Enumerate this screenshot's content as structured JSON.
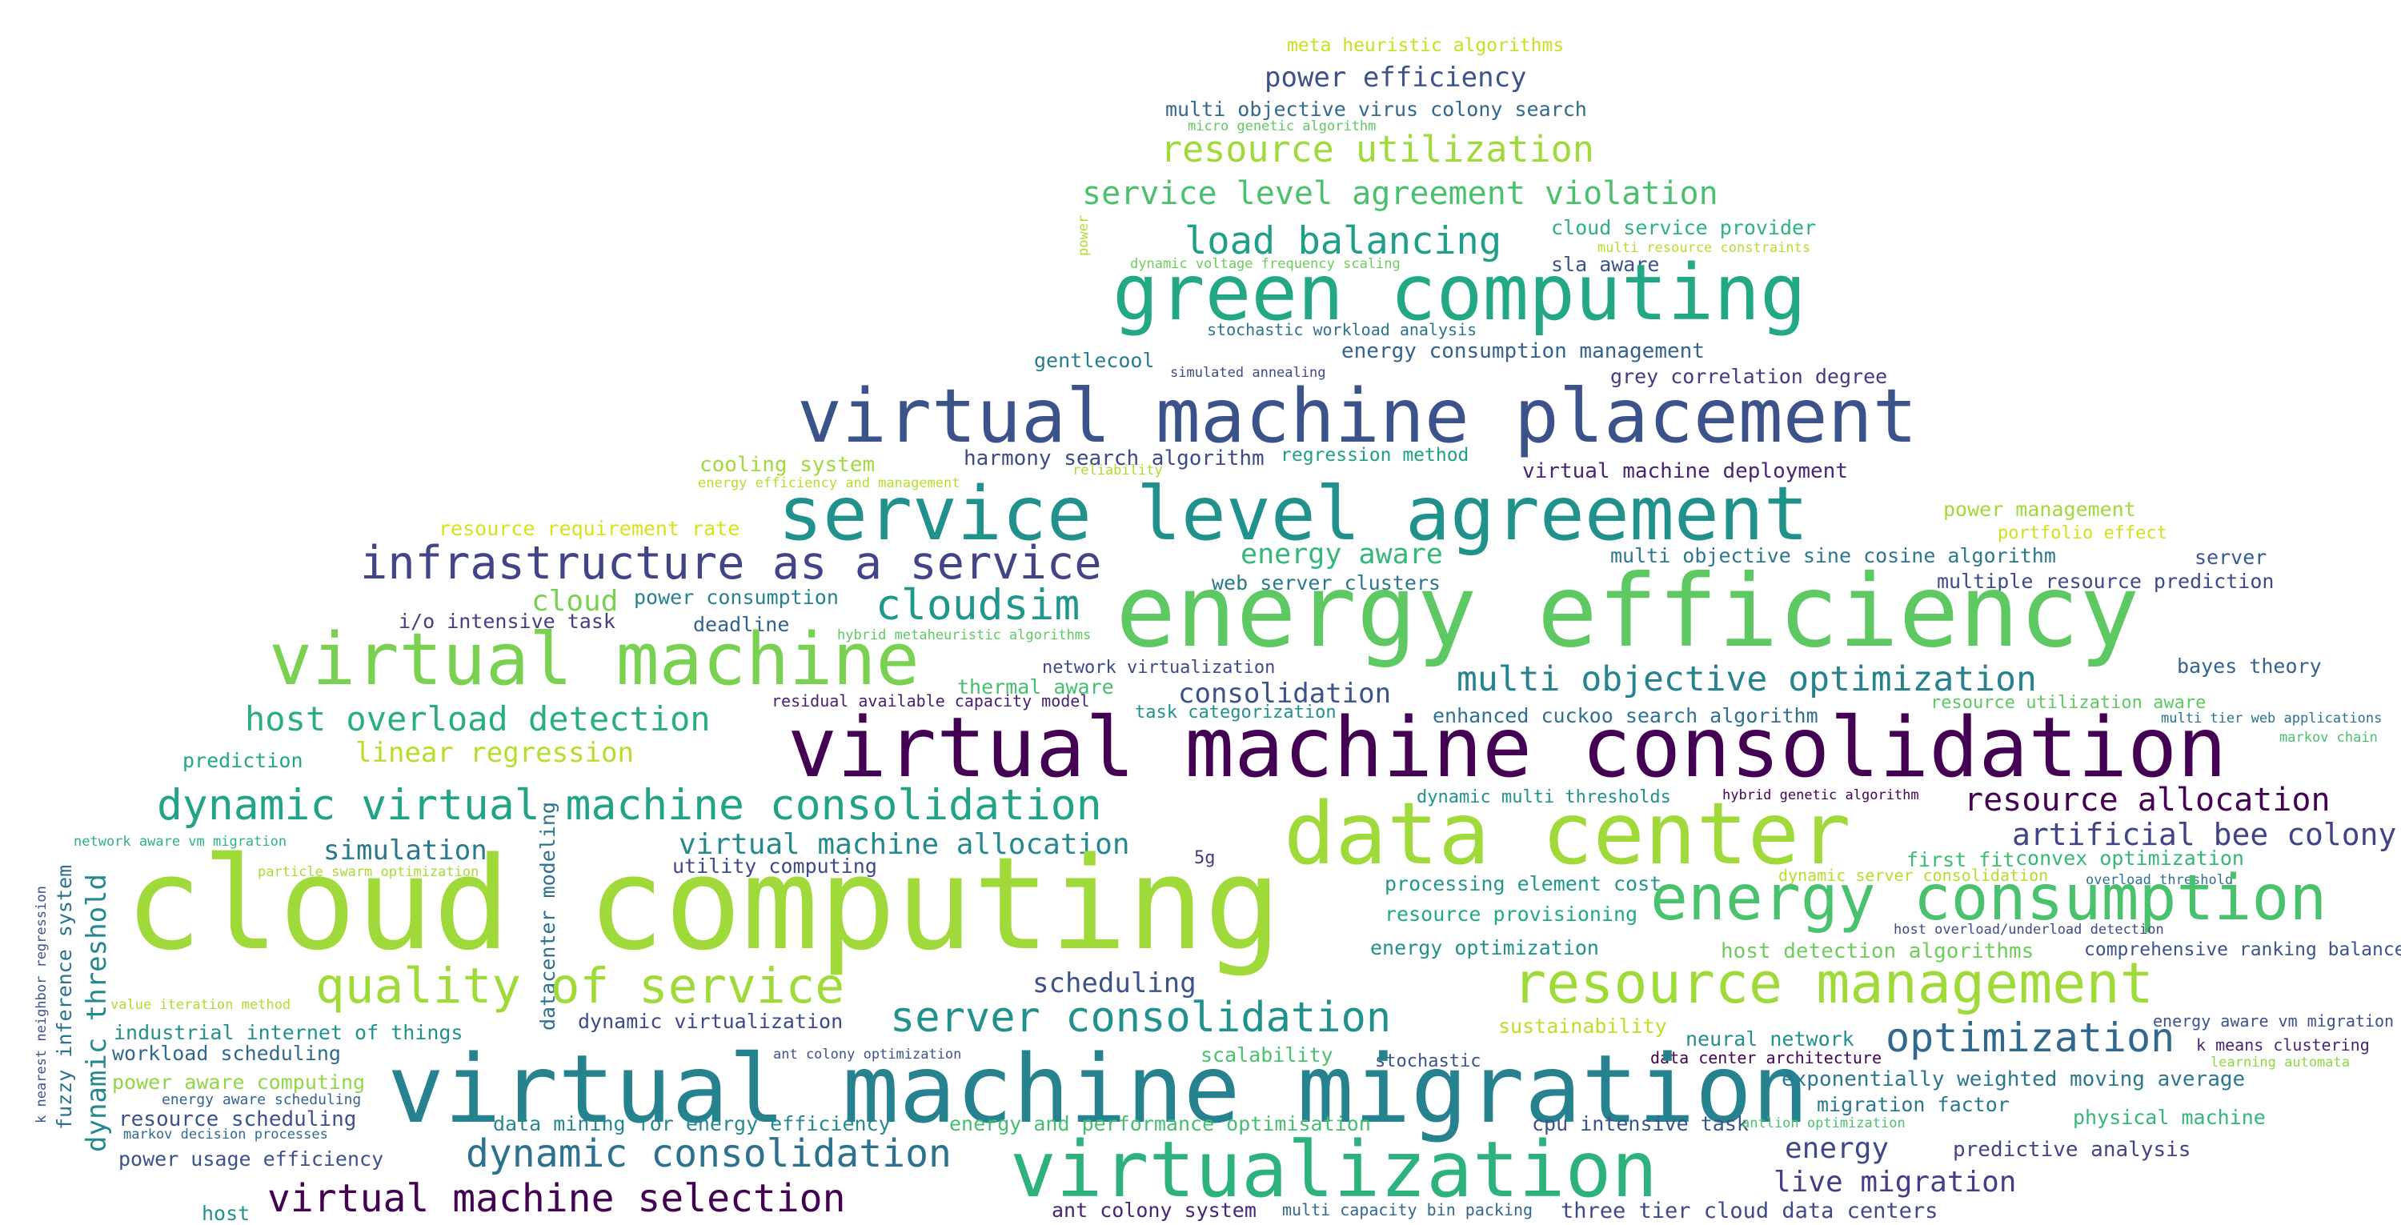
{
  "words": [
    {
      "text": "meta heuristic algorithms",
      "color": "#c8e020"
    },
    {
      "text": "power efficiency",
      "color": "#3b528b"
    },
    {
      "text": "multi objective virus colony search",
      "color": "#31688e"
    },
    {
      "text": "micro genetic algorithm",
      "color": "#5ec962"
    },
    {
      "text": "resource utilization",
      "color": "#9fda3a"
    },
    {
      "text": "service level agreement violation",
      "color": "#4ac16d"
    },
    {
      "text": "power",
      "color": "#addc30"
    },
    {
      "text": "load balancing",
      "color": "#1f9e89"
    },
    {
      "text": "cloud service provider",
      "color": "#2db27d"
    },
    {
      "text": "multi resource constraints",
      "color": "#b5de2b"
    },
    {
      "text": "dynamic voltage frequency scaling",
      "color": "#6ccd5a"
    },
    {
      "text": "sla aware",
      "color": "#3b528b"
    },
    {
      "text": "green computing",
      "color": "#22a884"
    },
    {
      "text": "stochastic workload analysis",
      "color": "#2c728e"
    },
    {
      "text": "energy consumption management",
      "color": "#33638d"
    },
    {
      "text": "gentlecool",
      "color": "#287c8e"
    },
    {
      "text": "simulated annealing",
      "color": "#3e4989"
    },
    {
      "text": "grey correlation degree",
      "color": "#443983"
    },
    {
      "text": "virtual machine placement",
      "color": "#3b528b"
    },
    {
      "text": "cooling system",
      "color": "#9fda3a"
    },
    {
      "text": "harmony search algorithm",
      "color": "#3e4989"
    },
    {
      "text": "regression method",
      "color": "#1f9e89"
    },
    {
      "text": "energy efficiency and management",
      "color": "#b5de2b"
    },
    {
      "text": "reliability",
      "color": "#addc30"
    },
    {
      "text": "virtual machine deployment",
      "color": "#482475"
    },
    {
      "text": "service level agreement",
      "color": "#21918c"
    },
    {
      "text": "power management",
      "color": "#a0da39"
    },
    {
      "text": "resource requirement rate",
      "color": "#d8e219"
    },
    {
      "text": "portfolio effect",
      "color": "#d0e11c"
    },
    {
      "text": "infrastructure as a service",
      "color": "#414487"
    },
    {
      "text": "energy aware",
      "color": "#35b779"
    },
    {
      "text": "multi objective sine cosine algorithm",
      "color": "#2a788e"
    },
    {
      "text": "server",
      "color": "#38598c"
    },
    {
      "text": "cloud",
      "color": "#7ad151"
    },
    {
      "text": "power consumption",
      "color": "#26828e"
    },
    {
      "text": "cloudsim",
      "color": "#1f988b"
    },
    {
      "text": "web server clusters",
      "color": "#2a788e"
    },
    {
      "text": "multiple resource prediction",
      "color": "#3e4989"
    },
    {
      "text": "i/o intensive task",
      "color": "#433e85"
    },
    {
      "text": "deadline",
      "color": "#34608d"
    },
    {
      "text": "hybrid metaheuristic algorithms",
      "color": "#5ec962"
    },
    {
      "text": "energy efficiency",
      "color": "#5ec962"
    },
    {
      "text": "virtual machine",
      "color": "#7ad151"
    },
    {
      "text": "network virtualization",
      "color": "#3e4989"
    },
    {
      "text": "bayes theory",
      "color": "#33638d"
    },
    {
      "text": "thermal aware",
      "color": "#44bf70"
    },
    {
      "text": "consolidation",
      "color": "#3b528b"
    },
    {
      "text": "multi objective optimization",
      "color": "#26828e"
    },
    {
      "text": "residual available capacity model",
      "color": "#481f70"
    },
    {
      "text": "task categorization",
      "color": "#21918c"
    },
    {
      "text": "enhanced cuckoo search algorithm",
      "color": "#2c728e"
    },
    {
      "text": "resource utilization aware",
      "color": "#5ec962"
    },
    {
      "text": "host overload detection",
      "color": "#29af7f"
    },
    {
      "text": "multi tier web applications",
      "color": "#2c728e"
    },
    {
      "text": "virtual machine consolidation",
      "color": "#440154"
    },
    {
      "text": "markov chain",
      "color": "#4ac16d"
    },
    {
      "text": "prediction",
      "color": "#22a884"
    },
    {
      "text": "linear regression",
      "color": "#b5de2b"
    },
    {
      "text": "dynamic multi thresholds",
      "color": "#21918c"
    },
    {
      "text": "hybrid genetic algorithm",
      "color": "#440154"
    },
    {
      "text": "resource allocation",
      "color": "#440154"
    },
    {
      "text": "dynamic virtual machine consolidation",
      "color": "#20a386"
    },
    {
      "text": "data center",
      "color": "#9fda3a"
    },
    {
      "text": "artificial bee colony",
      "color": "#414487"
    },
    {
      "text": "network aware vm migration",
      "color": "#2db27d"
    },
    {
      "text": "simulation",
      "color": "#2a788e"
    },
    {
      "text": "virtual machine allocation",
      "color": "#23898e"
    },
    {
      "text": "5g",
      "color": "#443983"
    },
    {
      "text": "first fit",
      "color": "#3dbc74"
    },
    {
      "text": "convex optimization",
      "color": "#35b779"
    },
    {
      "text": "particle swarm optimization",
      "color": "#a8db34"
    },
    {
      "text": "utility computing",
      "color": "#3e4989"
    },
    {
      "text": "dynamic server consolidation",
      "color": "#b5de2b"
    },
    {
      "text": "overload threshold",
      "color": "#2c728e"
    },
    {
      "text": "datacenter modeling",
      "color": "#2c728e"
    },
    {
      "text": "processing element cost",
      "color": "#1f988b"
    },
    {
      "text": "energy consumption",
      "color": "#4ac16d"
    },
    {
      "text": "k nearest neighbor regression",
      "color": "#3b528b"
    },
    {
      "text": "fuzzy inference system",
      "color": "#2c728e"
    },
    {
      "text": "dynamic threshold",
      "color": "#23898e"
    },
    {
      "text": "cloud computing",
      "color": "#9fda3a"
    },
    {
      "text": "resource provisioning",
      "color": "#22a884"
    },
    {
      "text": "host overload/underload detection",
      "color": "#3e4989"
    },
    {
      "text": "energy optimization",
      "color": "#21918c"
    },
    {
      "text": "host detection algorithms",
      "color": "#6ccd5a"
    },
    {
      "text": "comprehensive ranking balance",
      "color": "#3b528b"
    },
    {
      "text": "quality of service",
      "color": "#a0da39"
    },
    {
      "text": "resource management",
      "color": "#a0da39"
    },
    {
      "text": "scheduling",
      "color": "#3b528b"
    },
    {
      "text": "value iteration method",
      "color": "#addc30"
    },
    {
      "text": "dynamic virtualization",
      "color": "#3e4989"
    },
    {
      "text": "server consolidation",
      "color": "#21918c"
    },
    {
      "text": "sustainability",
      "color": "#bddf26"
    },
    {
      "text": "energy aware vm migration",
      "color": "#3b528b"
    },
    {
      "text": "industrial internet of things",
      "color": "#21918c"
    },
    {
      "text": "optimization",
      "color": "#31688e"
    },
    {
      "text": "neural network",
      "color": "#21918c"
    },
    {
      "text": "k means clustering",
      "color": "#482475"
    },
    {
      "text": "workload scheduling",
      "color": "#31688e"
    },
    {
      "text": "ant colony optimization",
      "color": "#3b528b"
    },
    {
      "text": "scalability",
      "color": "#4ac16d"
    },
    {
      "text": "stochastic",
      "color": "#3b528b"
    },
    {
      "text": "data center architecture",
      "color": "#440154"
    },
    {
      "text": "learning automata",
      "color": "#8fd744"
    },
    {
      "text": "power aware computing",
      "color": "#8fd744"
    },
    {
      "text": "virtual machine migration",
      "color": "#26828e"
    },
    {
      "text": "exponentially weighted moving average",
      "color": "#2a788e"
    },
    {
      "text": "energy aware scheduling",
      "color": "#33638d"
    },
    {
      "text": "resource scheduling",
      "color": "#3b528b"
    },
    {
      "text": "markov decision processes",
      "color": "#31688e"
    },
    {
      "text": "data mining for energy efficiency",
      "color": "#23898e"
    },
    {
      "text": "energy and performance optimisation",
      "color": "#44bf70"
    },
    {
      "text": "cpu intensive task",
      "color": "#3b528b"
    },
    {
      "text": "antlion optimization",
      "color": "#4ac16d"
    },
    {
      "text": "migration factor",
      "color": "#2a788e"
    },
    {
      "text": "physical machine",
      "color": "#35b779"
    },
    {
      "text": "dynamic consolidation",
      "color": "#2c728e"
    },
    {
      "text": "energy",
      "color": "#3e4989"
    },
    {
      "text": "power usage efficiency",
      "color": "#3b528b"
    },
    {
      "text": "predictive analysis",
      "color": "#414487"
    },
    {
      "text": "virtualization",
      "color": "#2db27d"
    },
    {
      "text": "live migration",
      "color": "#433e85"
    },
    {
      "text": "virtual machine selection",
      "color": "#440154"
    },
    {
      "text": "host",
      "color": "#21918c"
    },
    {
      "text": "ant colony system",
      "color": "#482475"
    },
    {
      "text": "multi capacity bin packing",
      "color": "#31688e"
    },
    {
      "text": "three tier cloud data centers",
      "color": "#3e4989"
    }
  ]
}
